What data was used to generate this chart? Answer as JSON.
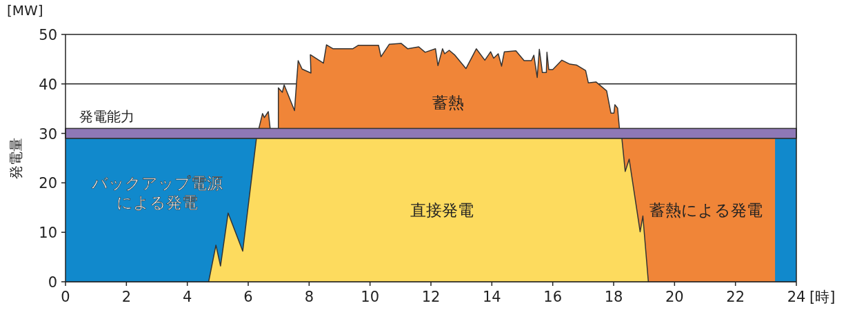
{
  "chart_data": {
    "type": "area",
    "xlabel": "[時]",
    "ylabel": "発電量",
    "xlim": [
      0,
      24
    ],
    "xticks": [
      0,
      2,
      4,
      6,
      8,
      10,
      12,
      14,
      16,
      18,
      20,
      22,
      24
    ],
    "ylim": [
      0,
      50
    ],
    "yticks": [
      0,
      10,
      20,
      30,
      40,
      50
    ],
    "grid": "y",
    "series": [
      {
        "name": "蓄熱",
        "color": "#f08538",
        "x": [
          6.35,
          6.47,
          6.53,
          6.66,
          6.72,
          6.85,
          6.99,
          6.99,
          7.12,
          7.18,
          7.52,
          7.64,
          7.77,
          8.06,
          8.04,
          8.47,
          8.57,
          8.79,
          9.43,
          9.61,
          10.28,
          10.36,
          10.63,
          11.02,
          11.24,
          11.6,
          11.81,
          12.15,
          12.23,
          12.38,
          12.45,
          12.6,
          12.79,
          13.15,
          13.49,
          13.77,
          13.96,
          14.06,
          14.21,
          14.32,
          14.41,
          14.79,
          15.06,
          15.3,
          15.38,
          15.49,
          15.56,
          15.66,
          15.79,
          15.81,
          15.87,
          16.0,
          16.3,
          16.56,
          16.79,
          17.08,
          17.17,
          17.42,
          17.77,
          17.91,
          18.01,
          18.04,
          18.13,
          18.19
        ],
        "values": [
          31,
          34.0,
          33.2,
          34.4,
          31,
          null,
          31,
          39.2,
          38.3,
          39.8,
          34.6,
          44.7,
          43.0,
          42.2,
          45.9,
          44.2,
          47.9,
          47.1,
          47.1,
          47.8,
          47.8,
          45.5,
          48.0,
          48.2,
          47.1,
          47.5,
          46.4,
          47.1,
          43.7,
          47.1,
          46.1,
          46.8,
          45.8,
          43.1,
          47.1,
          44.8,
          46.5,
          45.2,
          46.1,
          43.6,
          46.5,
          46.7,
          44.7,
          44.7,
          45.8,
          41.3,
          47.0,
          42.3,
          42.3,
          46.4,
          42.9,
          42.9,
          44.8,
          44.0,
          43.8,
          42.7,
          40.2,
          40.4,
          38.6,
          34.1,
          34.1,
          35.8,
          35.1,
          31
        ]
      },
      {
        "name": "バックアップ電源による発電",
        "color": "#1189cc",
        "x": [
          0,
          24
        ],
        "values": [
          29,
          29
        ]
      },
      {
        "name": "蓄熱による発電",
        "color": "#f08538",
        "x": [
          18.27,
          23.3
        ],
        "values": [
          29,
          29
        ]
      },
      {
        "name": "直接発電",
        "color": "#fddb5e",
        "x": [
          4.7,
          4.94,
          5.09,
          5.34,
          5.82,
          6.27,
          18.27,
          18.38,
          18.51,
          18.87,
          18.96,
          19.14
        ],
        "values": [
          0,
          7.4,
          3.2,
          13.9,
          6.2,
          29,
          29,
          22.3,
          24.8,
          10.1,
          13.3,
          0
        ]
      }
    ],
    "bands": [
      {
        "axis": "y",
        "from": 29,
        "to": 31,
        "label": "発電能力",
        "color": "#8e78b6"
      }
    ],
    "annotations": [
      "[MW]"
    ]
  }
}
